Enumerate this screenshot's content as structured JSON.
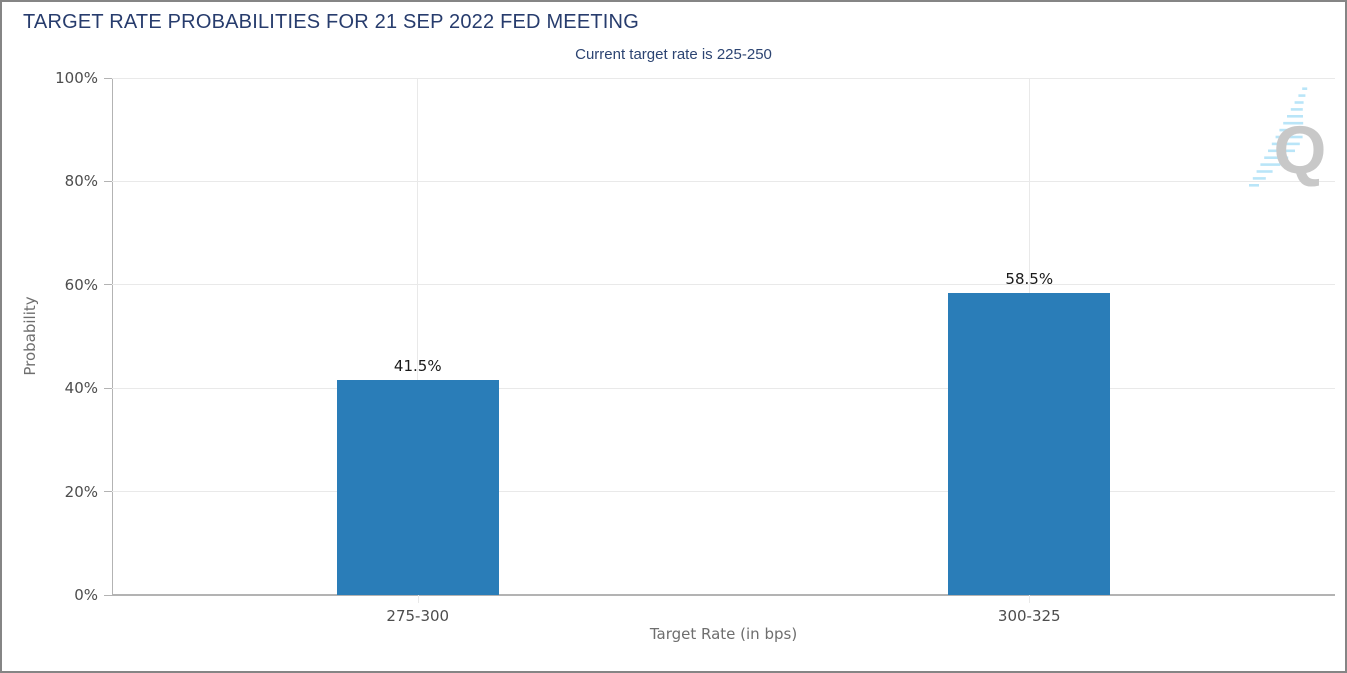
{
  "header": {
    "title": "TARGET RATE PROBABILITIES FOR 21 SEP 2022 FED MEETING",
    "subtitle": "Current target rate is 225-250"
  },
  "watermark": {
    "letter": "Q"
  },
  "colors": {
    "bar": "#2a7db8",
    "title": "#273c6d",
    "subtitle": "#2c4472",
    "grid": "#e9e9e9",
    "axis": "#b3b3b3",
    "tick_label": "#4d4d4d",
    "axis_label": "#6e6e6e",
    "value_label": "#1a1a1a",
    "watermark_letter": "#c8c8c8",
    "watermark_dash": "#b9e5f8"
  },
  "chart_data": {
    "type": "bar",
    "title": "TARGET RATE PROBABILITIES FOR 21 SEP 2022 FED MEETING",
    "subtitle": "Current target rate is 225-250",
    "categories": [
      "275-300",
      "300-325"
    ],
    "values": [
      41.5,
      58.5
    ],
    "value_labels": [
      "41.5%",
      "58.5%"
    ],
    "xlabel": "Target Rate (in bps)",
    "ylabel": "Probability",
    "ylim": [
      0,
      100
    ],
    "yticks": [
      0,
      20,
      40,
      60,
      80,
      100
    ],
    "ytick_labels": [
      "0%",
      "20%",
      "40%",
      "60%",
      "80%",
      "100%"
    ],
    "grid": true,
    "legend_position": "none",
    "bar_color": "#2a7db8"
  }
}
